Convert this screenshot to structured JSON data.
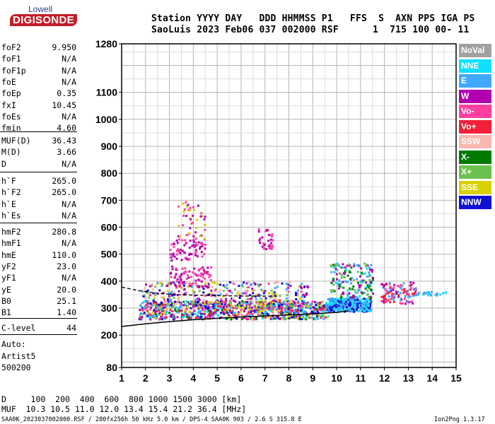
{
  "logo": {
    "lowell": "Lowell",
    "digisonde": "DIGISONDE"
  },
  "header": {
    "line1": "Station YYYY DAY   DDD HHMMSS P1   FFS  S  AXN PPS IGA PS",
    "line2": "SaoLuis 2023 Feb06 037 002000 RSF      1  715 100 00- 11"
  },
  "params_group1": [
    {
      "name": "foF2",
      "value": "9.950"
    },
    {
      "name": "foF1",
      "value": "N/A"
    },
    {
      "name": "foF1p",
      "value": "N/A"
    },
    {
      "name": "foE",
      "value": "N/A"
    },
    {
      "name": "foEp",
      "value": "0.35"
    },
    {
      "name": "fxI",
      "value": "10.45"
    },
    {
      "name": "foEs",
      "value": "N/A"
    },
    {
      "name": "fmin",
      "value": "4.60"
    }
  ],
  "params_group2": [
    {
      "name": "MUF(D)",
      "value": "36.43"
    },
    {
      "name": "M(D)",
      "value": "3.66"
    },
    {
      "name": "D",
      "value": "N/A"
    }
  ],
  "params_group3": [
    {
      "name": "h`F",
      "value": "265.0"
    },
    {
      "name": "h`F2",
      "value": "265.0"
    },
    {
      "name": "h`E",
      "value": "N/A"
    },
    {
      "name": "h`Es",
      "value": "N/A"
    }
  ],
  "params_group4": [
    {
      "name": "hmF2",
      "value": "280.8"
    },
    {
      "name": "hmF1",
      "value": "N/A"
    },
    {
      "name": "hmE",
      "value": "110.0"
    },
    {
      "name": "yF2",
      "value": "23.0"
    },
    {
      "name": "yF1",
      "value": "N/A"
    },
    {
      "name": "yE",
      "value": "20.0"
    },
    {
      "name": "B0",
      "value": "25.1"
    },
    {
      "name": "B1",
      "value": "1.40"
    }
  ],
  "clevel": {
    "name": "C-level",
    "value": "44"
  },
  "autoscale": {
    "line1": "Auto:",
    "line2": "Artist5",
    "line3": "500200"
  },
  "bottom": {
    "line1": "D     100  200  400  600  800 1000 1500 3000 [km]",
    "line2": "MUF  10.3 10.5 11.0 12.0 13.4 15.4 21.2 36.4 [MHz]"
  },
  "footer": {
    "left": "SAA0K_2023037002000.RSF / 280fx256h 50 kHz 5.0 km / DPS-4 SAA0K 903 / 2.6 S 315.8 E",
    "right": "Ion2Png 1.3.17"
  },
  "legend": [
    {
      "label": "NoVal",
      "color": "#a0a0a0"
    },
    {
      "label": "NNE",
      "color": "#10e0ff"
    },
    {
      "label": "E",
      "color": "#40a8ff"
    },
    {
      "label": "W",
      "color": "#b000b0"
    },
    {
      "label": "Vo-",
      "color": "#ff3fa0"
    },
    {
      "label": "Vo+",
      "color": "#f0203a"
    },
    {
      "label": "SSW",
      "color": "#f8b8b0"
    },
    {
      "label": "X-",
      "color": "#007a00"
    },
    {
      "label": "X+",
      "color": "#6cc050"
    },
    {
      "label": "SSE",
      "color": "#d8d000"
    },
    {
      "label": "NNW",
      "color": "#1010d0"
    }
  ],
  "chart_data": {
    "type": "scatter",
    "x_ticks": [
      "1",
      "2",
      "3",
      "4",
      "5",
      "6",
      "7",
      "8",
      "9",
      "10",
      "11",
      "12",
      "13",
      "14",
      "15"
    ],
    "y_tick_values": [
      80,
      200,
      300,
      400,
      500,
      600,
      700,
      800,
      900,
      1000,
      1100,
      1280
    ],
    "xlim": [
      1,
      15
    ],
    "ylim": [
      80,
      1280
    ],
    "grid": true,
    "legend_position": "right",
    "profile_curve": {
      "f": [
        1,
        2,
        3,
        4,
        5,
        6,
        7,
        8,
        9,
        10,
        10.5
      ],
      "h": [
        232,
        242,
        250,
        257,
        262,
        267,
        271,
        275,
        279,
        284,
        290
      ]
    },
    "dashed_curve": {
      "f": [
        1,
        1.7,
        2.5,
        3.3,
        4.5,
        6,
        7.5
      ],
      "h": [
        378,
        365,
        355,
        350,
        347,
        345,
        344
      ]
    },
    "clusters": [
      {
        "fmin": 1.7,
        "fmax": 9.6,
        "hmin": 262,
        "hmax": 330,
        "count": 900,
        "colors": [
          "#1010d0",
          "#b000b0",
          "#f0203a",
          "#40a8ff",
          "#d8d000",
          "#007a00",
          "#10e0ff",
          "#ff3fa0"
        ]
      },
      {
        "fmin": 1.8,
        "fmax": 8.8,
        "hmin": 300,
        "hmax": 400,
        "count": 420,
        "colors": [
          "#d8d000",
          "#f8b8b0",
          "#6cc050",
          "#ff3fa0",
          "#40a8ff",
          "#b000b0",
          "#1010d0"
        ]
      },
      {
        "fmin": 3.0,
        "fmax": 4.7,
        "hmin": 380,
        "hmax": 460,
        "count": 90,
        "colors": [
          "#b000b0",
          "#ff3fa0"
        ]
      },
      {
        "fmin": 3.0,
        "fmax": 4.5,
        "hmin": 480,
        "hmax": 560,
        "count": 70,
        "colors": [
          "#b000b0",
          "#ff3fa0"
        ]
      },
      {
        "fmin": 3.3,
        "fmax": 4.5,
        "hmin": 560,
        "hmax": 700,
        "count": 45,
        "colors": [
          "#b000b0",
          "#ff3fa0",
          "#d8d000"
        ]
      },
      {
        "fmin": 6.7,
        "fmax": 7.3,
        "hmin": 520,
        "hmax": 600,
        "count": 35,
        "colors": [
          "#b000b0",
          "#ff3fa0"
        ]
      },
      {
        "fmin": 9.6,
        "fmax": 11.4,
        "hmin": 290,
        "hmax": 340,
        "count": 340,
        "colors": [
          "#10e0ff",
          "#40a8ff",
          "#1010d0"
        ]
      },
      {
        "fmin": 9.7,
        "fmax": 11.5,
        "hmin": 340,
        "hmax": 470,
        "count": 180,
        "colors": [
          "#6cc050",
          "#007a00",
          "#10e0ff",
          "#40a8ff",
          "#b000b0"
        ]
      },
      {
        "fmin": 11.8,
        "fmax": 13.3,
        "hmin": 320,
        "hmax": 400,
        "count": 110,
        "colors": [
          "#ff3fa0",
          "#f0203a",
          "#b000b0",
          "#40a8ff"
        ]
      },
      {
        "fmin": 13.3,
        "fmax": 14.6,
        "hmin": 350,
        "hmax": 365,
        "count": 25,
        "colors": [
          "#40a8ff",
          "#10e0ff"
        ]
      }
    ]
  }
}
